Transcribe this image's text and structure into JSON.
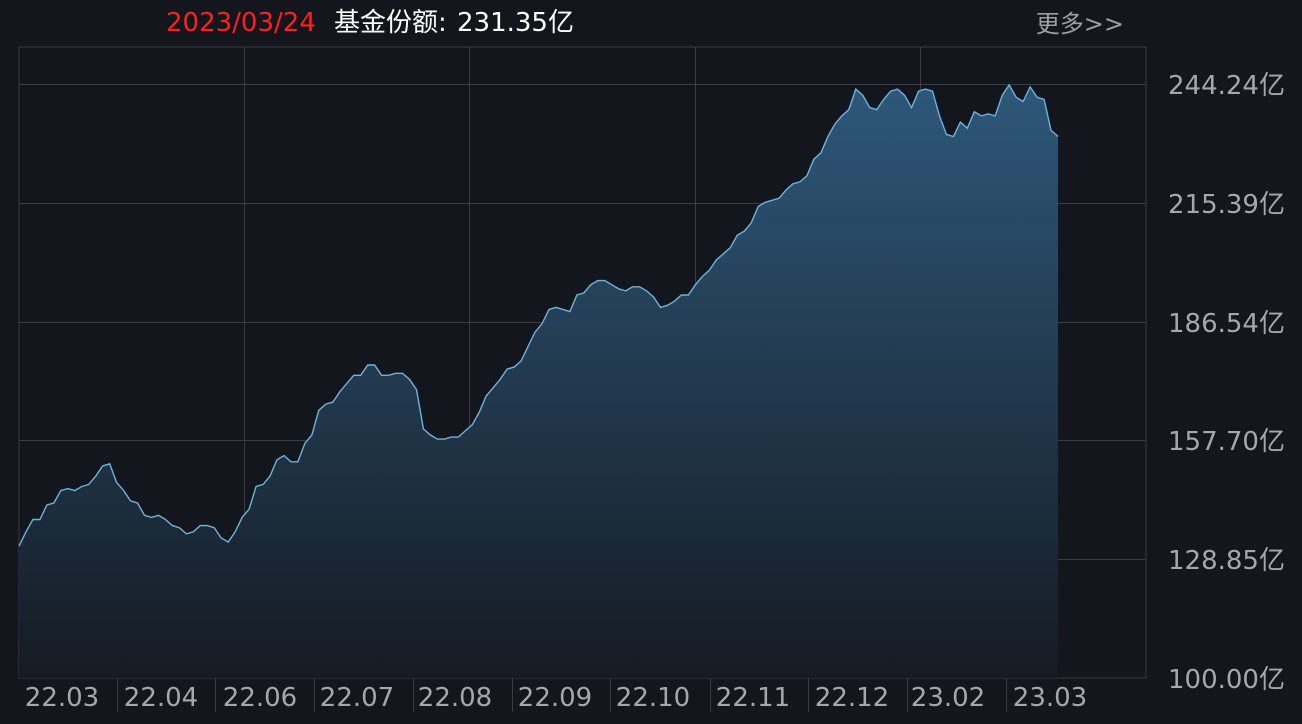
{
  "header": {
    "date": "2023/03/24",
    "share_label": "基金份额:",
    "share_value": "231.35亿",
    "more_label": "更多>>"
  },
  "colors": {
    "background": "#13161c",
    "line": "#6cb3e0",
    "fill_top": "#2e5779",
    "fill_bottom": "#151b23",
    "date": "#ff1f1f",
    "grid": "#3a3d44",
    "tick_text": "#a4a7ad"
  },
  "chart_data": {
    "type": "area",
    "title": "",
    "xlabel": "",
    "ylabel": "",
    "unit": "亿",
    "ylim": [
      100.0,
      244.24
    ],
    "yticks": [
      "244.24亿",
      "215.39亿",
      "186.54亿",
      "157.70亿",
      "128.85亿",
      "100.00亿"
    ],
    "ytick_values": [
      244.24,
      215.39,
      186.54,
      157.7,
      128.85,
      100.0
    ],
    "xticks": [
      "22.03",
      "22.04",
      "22.06",
      "22.07",
      "22.08",
      "22.09",
      "22.10",
      "22.11",
      "22.12",
      "23.02",
      "23.03"
    ],
    "grid": true,
    "series": [
      {
        "values": [
          132.0,
          135.5,
          138.5,
          138.5,
          142.0,
          142.5,
          145.5,
          146.0,
          145.5,
          146.5,
          147.0,
          149.0,
          151.5,
          152.0,
          147.5,
          145.5,
          143.0,
          142.5,
          139.5,
          139.0,
          139.5,
          138.5,
          137.0,
          136.5,
          135.0,
          135.5,
          137.0,
          137.0,
          136.5,
          134.0,
          133.0,
          135.5,
          139.0,
          141.0,
          146.5,
          147.0,
          149.0,
          153.0,
          154.0,
          152.5,
          152.5,
          157.0,
          159.0,
          165.0,
          166.5,
          167.0,
          169.5,
          171.5,
          173.5,
          173.5,
          176.0,
          176.0,
          173.5,
          173.5,
          174.0,
          174.0,
          172.5,
          170.0,
          160.5,
          159.0,
          158.0,
          158.0,
          158.5,
          158.5,
          160.0,
          161.5,
          164.5,
          168.5,
          170.5,
          172.5,
          175.0,
          175.5,
          177.0,
          180.5,
          184.0,
          186.0,
          189.5,
          190.0,
          189.5,
          189.0,
          193.0,
          193.5,
          195.5,
          196.5,
          196.5,
          195.5,
          194.5,
          194.0,
          195.0,
          195.0,
          194.0,
          192.5,
          190.0,
          190.5,
          191.5,
          193.0,
          193.0,
          195.5,
          197.5,
          199.0,
          201.5,
          203.0,
          204.5,
          207.5,
          208.5,
          210.5,
          214.5,
          215.5,
          216.0,
          216.5,
          218.5,
          220.0,
          220.5,
          222.0,
          226.0,
          227.5,
          231.5,
          234.5,
          236.5,
          238.0,
          243.0,
          241.5,
          238.5,
          238.0,
          240.5,
          242.5,
          243.0,
          241.5,
          238.5,
          242.5,
          243.0,
          242.5,
          236.5,
          232.0,
          231.5,
          235.0,
          233.5,
          237.5,
          236.5,
          237.0,
          236.5,
          241.5,
          244.0,
          241.0,
          240.0,
          243.5,
          241.0,
          240.5,
          233.0,
          231.5
        ]
      }
    ]
  }
}
